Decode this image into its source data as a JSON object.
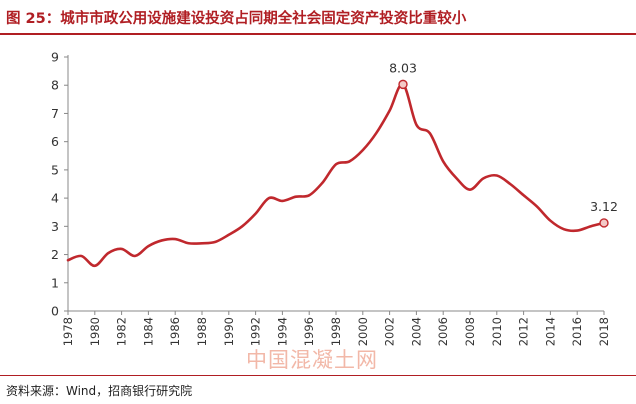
{
  "title": "图 25：城市市政公用设施建设投资占同期全社会固定资产投资比重较小",
  "source": "资料来源：Wind，招商银行研究院",
  "watermark": "中国混凝土网",
  "colors": {
    "accent": "#b01e23",
    "line": "#c0282d",
    "marker_fill": "#f3c9c7",
    "axis": "#888888",
    "text": "#333333"
  },
  "chart_data": {
    "type": "line",
    "title": "",
    "xlabel": "",
    "ylabel": "",
    "grid": false,
    "legend": "none",
    "ylim": [
      0,
      9
    ],
    "yticks": [
      0,
      1,
      2,
      3,
      4,
      5,
      6,
      7,
      8,
      9
    ],
    "xlim": [
      1978,
      2018
    ],
    "xticks": [
      1978,
      1980,
      1982,
      1984,
      1986,
      1988,
      1990,
      1992,
      1994,
      1996,
      1998,
      2000,
      2002,
      2004,
      2006,
      2008,
      2010,
      2012,
      2014,
      2016,
      2018
    ],
    "series": [
      {
        "name": "",
        "x": [
          1978,
          1979,
          1980,
          1981,
          1982,
          1983,
          1984,
          1985,
          1986,
          1987,
          1988,
          1989,
          1990,
          1991,
          1992,
          1993,
          1994,
          1995,
          1996,
          1997,
          1998,
          1999,
          2000,
          2001,
          2002,
          2003,
          2004,
          2005,
          2006,
          2007,
          2008,
          2009,
          2010,
          2011,
          2012,
          2013,
          2014,
          2015,
          2016,
          2017,
          2018
        ],
        "values": [
          1.8,
          1.95,
          1.6,
          2.05,
          2.2,
          1.95,
          2.3,
          2.5,
          2.55,
          2.4,
          2.4,
          2.45,
          2.7,
          3.0,
          3.45,
          4.0,
          3.9,
          4.05,
          4.1,
          4.55,
          5.2,
          5.3,
          5.7,
          6.3,
          7.1,
          8.03,
          6.6,
          6.3,
          5.3,
          4.7,
          4.3,
          4.7,
          4.8,
          4.5,
          4.1,
          3.7,
          3.2,
          2.9,
          2.85,
          3.0,
          3.12
        ]
      }
    ],
    "annotations": [
      {
        "x": 2003,
        "y": 8.03,
        "text": "8.03"
      },
      {
        "x": 2018,
        "y": 3.12,
        "text": "3.12"
      }
    ]
  }
}
